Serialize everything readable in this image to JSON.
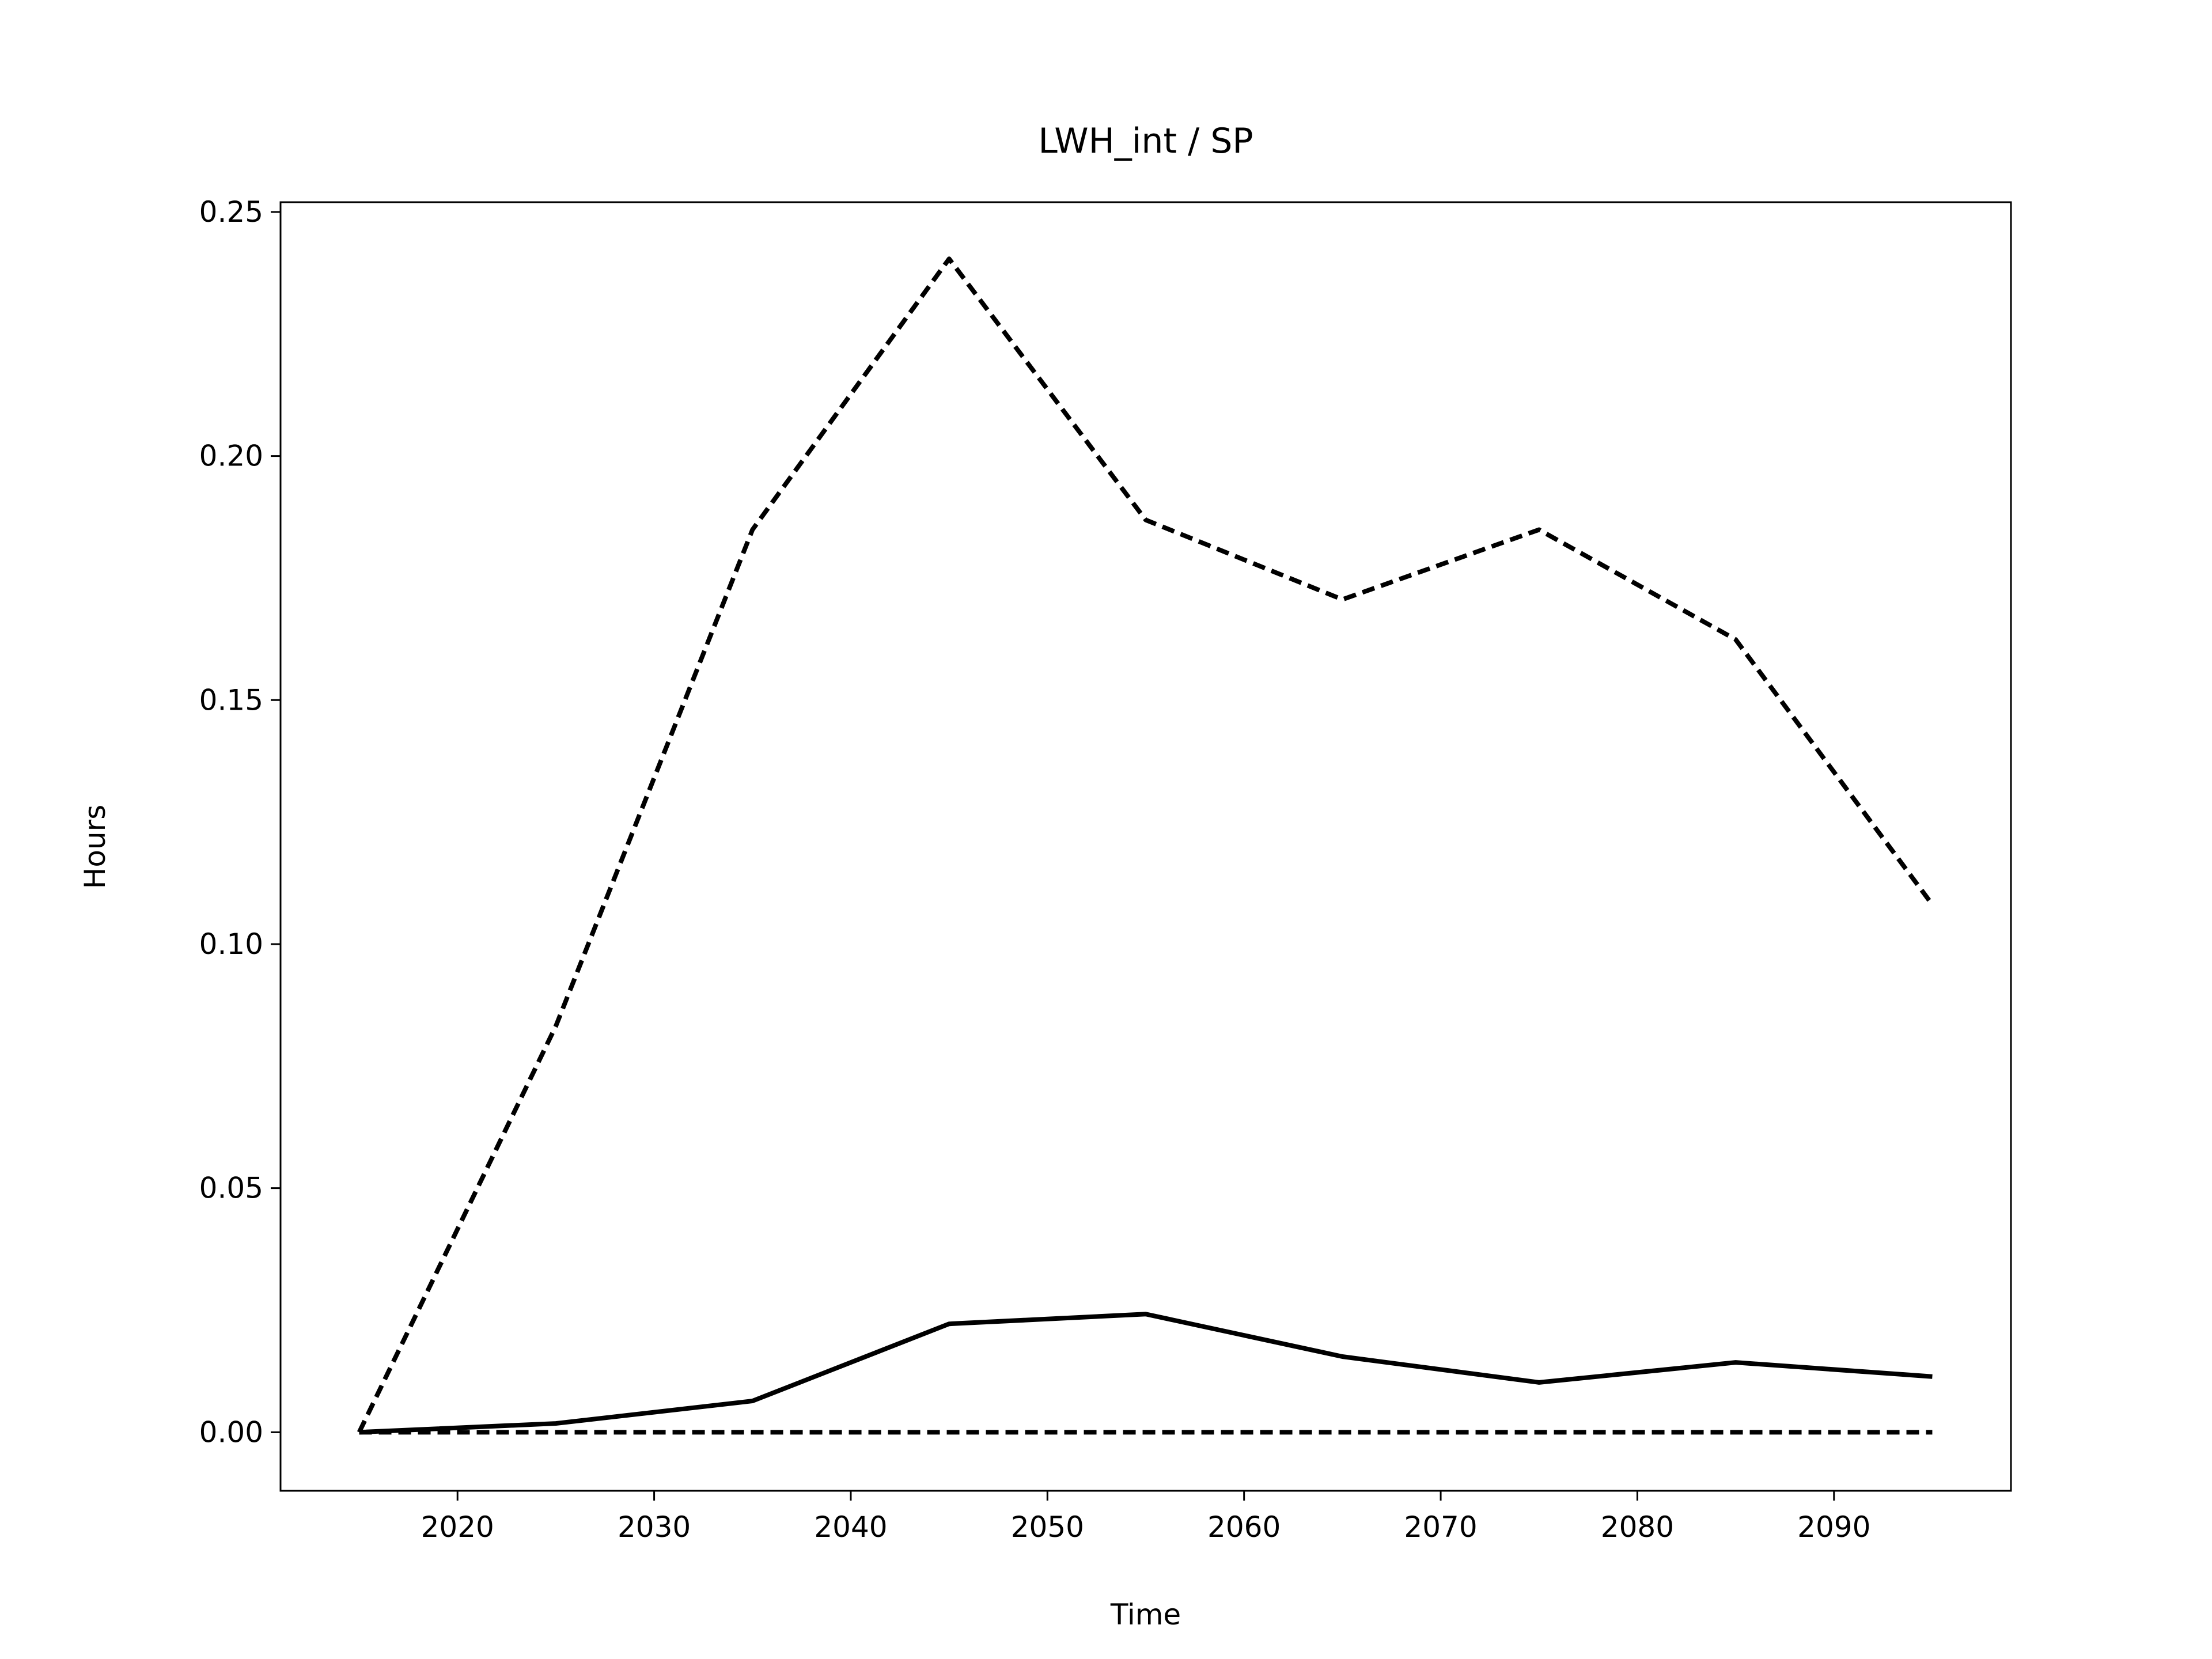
{
  "chart_data": {
    "type": "line",
    "title": "LWH_int / SP",
    "xlabel": "Time",
    "ylabel": "Hours",
    "x": [
      2015,
      2025,
      2035,
      2045,
      2055,
      2065,
      2075,
      2085,
      2095
    ],
    "series": [
      {
        "color": "#000000",
        "style": "dashed",
        "values": [
          0,
          0.0832,
          0.1849,
          0.2404,
          0.1869,
          0.1706,
          0.1849,
          0.1624,
          0.1081
        ]
      },
      {
        "color": "#000000",
        "style": "solid",
        "values": [
          0,
          0.0018,
          0.0064,
          0.0222,
          0.0242,
          0.0155,
          0.0102,
          0.0143,
          0.0114
        ]
      },
      {
        "color": "#000000",
        "style": "dashed",
        "values": [
          0,
          0,
          0,
          0,
          0,
          0,
          0,
          0,
          0
        ]
      }
    ],
    "xlim": [
      2011,
      2099
    ],
    "xticks": [
      2020,
      2030,
      2040,
      2050,
      2060,
      2070,
      2080,
      2090
    ],
    "ylim": [
      -0.012,
      0.252
    ],
    "yticks": [
      {
        "value": 0,
        "label": "0.00"
      },
      {
        "value": 0.05,
        "label": "0.05"
      },
      {
        "value": 0.1,
        "label": "0.10"
      },
      {
        "value": 0.15,
        "label": "0.15"
      },
      {
        "value": 0.2,
        "label": "0.20"
      },
      {
        "value": 0.25,
        "label": "0.25"
      }
    ],
    "grid": false
  }
}
